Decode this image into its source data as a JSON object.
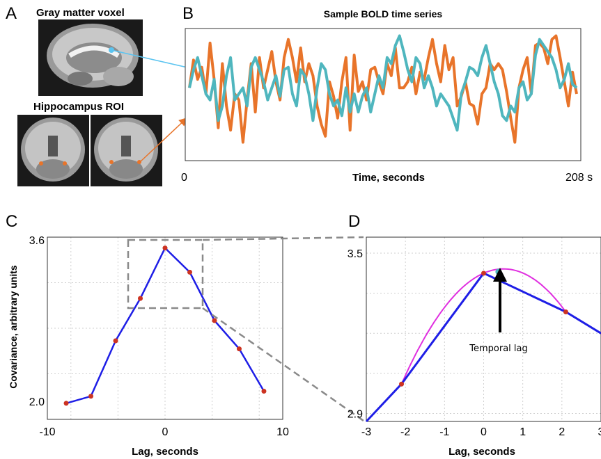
{
  "panel_labels": {
    "a": "A",
    "b": "B",
    "c": "C",
    "d": "D"
  },
  "panel_a": {
    "voxel_label": "Gray matter voxel",
    "roi_label": "Hippocampus ROI"
  },
  "colors": {
    "orange": "#E8742A",
    "teal": "#4FB6BE",
    "blue": "#1E1EE6",
    "red_dot": "#CC3322",
    "magenta": "#E030E0",
    "arrow_blue": "#5BC4F0",
    "arrow_orange": "#E8742A",
    "dash_gray": "#8A8A8A"
  },
  "chart_data": [
    {
      "panel": "B",
      "type": "line",
      "title": "Sample BOLD time series",
      "xlabel": "Time, seconds",
      "x_start_label": "0",
      "x_end_label": "208 s",
      "series": [
        {
          "color": "#E8742A",
          "values": [
            0.55,
            0.78,
            0.62,
            0.72,
            0.5,
            0.92,
            0.62,
            0.22,
            0.75,
            0.4,
            0.2,
            0.5,
            0.45,
            0.1,
            0.45,
            0.75,
            0.35,
            0.8,
            0.55,
            0.7,
            0.85,
            0.6,
            0.45,
            0.8,
            0.95,
            0.8,
            0.6,
            0.88,
            0.6,
            0.75,
            0.65,
            0.4,
            0.25,
            0.15,
            0.6,
            0.48,
            0.3,
            0.6,
            0.8,
            0.2,
            0.82,
            0.52,
            0.6,
            0.45,
            0.7,
            0.72,
            0.6,
            0.5,
            0.75,
            0.65,
            0.88,
            0.55,
            0.55,
            0.6,
            0.72,
            0.5,
            0.68,
            0.62,
            0.8,
            0.95,
            0.75,
            0.6,
            0.9,
            0.7,
            0.8,
            0.4,
            0.48,
            0.6,
            0.42,
            0.4,
            0.25,
            0.5,
            0.55,
            0.75,
            0.7,
            0.75,
            0.7,
            0.52,
            0.3,
            0.1,
            0.55,
            0.7,
            0.8,
            0.5,
            0.9,
            0.92,
            0.88,
            0.75,
            0.95,
            0.98,
            0.8,
            0.6,
            0.4,
            0.68,
            0.5
          ]
        },
        {
          "color": "#4FB6BE",
          "values": [
            0.55,
            0.7,
            0.8,
            0.65,
            0.5,
            0.45,
            0.62,
            0.28,
            0.4,
            0.65,
            0.8,
            0.45,
            0.5,
            0.55,
            0.4,
            0.72,
            0.8,
            0.7,
            0.6,
            0.45,
            0.55,
            0.65,
            0.48,
            0.7,
            0.72,
            0.5,
            0.4,
            0.7,
            0.65,
            0.5,
            0.28,
            0.55,
            0.75,
            0.7,
            0.5,
            0.4,
            0.45,
            0.32,
            0.55,
            0.35,
            0.5,
            0.35,
            0.48,
            0.55,
            0.35,
            0.5,
            0.65,
            0.55,
            0.8,
            0.75,
            0.9,
            0.98,
            0.85,
            0.7,
            0.6,
            0.8,
            0.75,
            0.55,
            0.65,
            0.55,
            0.4,
            0.5,
            0.45,
            0.4,
            0.3,
            0.2,
            0.5,
            0.6,
            0.72,
            0.7,
            0.65,
            0.8,
            0.9,
            0.75,
            0.6,
            0.5,
            0.32,
            0.28,
            0.4,
            0.35,
            0.55,
            0.6,
            0.45,
            0.5,
            0.82,
            0.95,
            0.9,
            0.85,
            0.8,
            0.7,
            0.55,
            0.62,
            0.75,
            0.58,
            0.55
          ]
        }
      ]
    },
    {
      "panel": "C",
      "type": "line",
      "xlabel": "Lag, seconds",
      "ylabel": "Covariance, arbitrary units",
      "xlim": [
        -10,
        10
      ],
      "ylim": [
        2.0,
        3.6
      ],
      "xticks": [
        "-10",
        "0",
        "10"
      ],
      "yticks": [
        "2.0",
        "3.6"
      ],
      "x": [
        -8.4,
        -6.3,
        -4.2,
        -2.1,
        0,
        2.1,
        4.2,
        6.3,
        8.4
      ],
      "y": [
        1.98,
        2.05,
        2.6,
        3.02,
        3.52,
        3.28,
        2.8,
        2.52,
        2.1
      ]
    },
    {
      "panel": "D",
      "type": "line",
      "xlabel": "Lag, seconds",
      "xlim": [
        -3,
        3
      ],
      "ylim": [
        2.87,
        3.56
      ],
      "xticks": [
        "-3",
        "-2",
        "-1",
        "0",
        "1",
        "2",
        "3"
      ],
      "yticks": [
        "2.9",
        "3.5"
      ],
      "x": [
        -3,
        -2.1,
        0,
        2.1,
        3
      ],
      "y": [
        2.87,
        3.01,
        3.425,
        3.28,
        3.2
      ],
      "peak": {
        "x": 0.38,
        "y": 3.43
      },
      "annotation": "Temporal lag"
    }
  ]
}
